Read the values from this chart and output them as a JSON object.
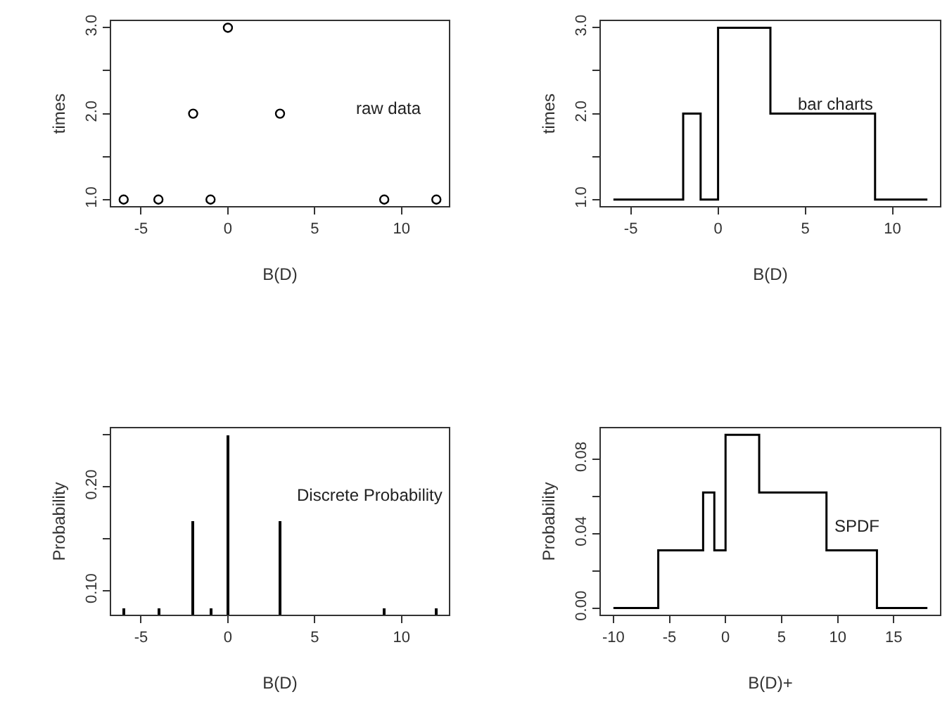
{
  "chart_data": [
    {
      "type": "scatter",
      "xlabel": "B(D)",
      "ylabel": "times",
      "annotations": [
        "raw data"
      ],
      "marker": "circle",
      "x": [
        -6,
        -4,
        -2,
        -1,
        0,
        3,
        9,
        12
      ],
      "series": [
        {
          "color": "#000000",
          "values": [
            1,
            1,
            2,
            1,
            3,
            2,
            1,
            1
          ]
        }
      ],
      "xlim": [
        -6.72,
        12.72
      ],
      "ylim": [
        0.92,
        3.08
      ],
      "xticks": [
        -5,
        0,
        5,
        10
      ],
      "yticks": [
        {
          "value": 1,
          "label": "1.0"
        },
        {
          "value": 1.5,
          "label": null
        },
        {
          "value": 2,
          "label": "2.0"
        },
        {
          "value": 2.5,
          "label": null
        },
        {
          "value": 3,
          "label": "3.0"
        }
      ]
    },
    {
      "type": "step",
      "xlabel": "B(D)",
      "ylabel": "times",
      "annotations": [
        "bar charts"
      ],
      "x": [
        -6,
        -2,
        -1,
        0,
        3,
        9,
        12
      ],
      "series": [
        {
          "color": "#000000",
          "values": [
            1,
            2,
            1,
            3,
            2,
            1,
            1
          ]
        }
      ],
      "xlim": [
        -6.72,
        12.72
      ],
      "ylim": [
        0.92,
        3.08
      ],
      "xticks": [
        -5,
        0,
        5,
        10
      ],
      "yticks": [
        {
          "value": 1,
          "label": "1.0"
        },
        {
          "value": 1.5,
          "label": null
        },
        {
          "value": 2,
          "label": "2.0"
        },
        {
          "value": 2.5,
          "label": null
        },
        {
          "value": 3,
          "label": "3.0"
        }
      ]
    },
    {
      "type": "bar",
      "xlabel": "B(D)",
      "ylabel": "Probability",
      "annotations": [
        "Discrete Probability"
      ],
      "x": [
        -6,
        -4,
        -2,
        -1,
        0,
        3,
        9,
        12
      ],
      "series": [
        {
          "color": "#000000",
          "values": [
            0.083,
            0.083,
            0.167,
            0.083,
            0.25,
            0.167,
            0.083,
            0.083
          ]
        }
      ],
      "xlim": [
        -6.72,
        12.72
      ],
      "ylim": [
        0.0767,
        0.2567
      ],
      "xticks": [
        -5,
        0,
        5,
        10
      ],
      "yticks": [
        {
          "value": 0.1,
          "label": "0.10"
        },
        {
          "value": 0.15,
          "label": null
        },
        {
          "value": 0.2,
          "label": "0.20"
        },
        {
          "value": 0.25,
          "label": null
        }
      ]
    },
    {
      "type": "step",
      "xlabel": "B(D)+",
      "ylabel": "Probability",
      "annotations": [
        "SPDF"
      ],
      "x": [
        -10,
        -6,
        -2,
        -1,
        0,
        3,
        9,
        13.5,
        18
      ],
      "series": [
        {
          "color": "#000000",
          "values": [
            0,
            0.031,
            0.062,
            0.031,
            0.093,
            0.062,
            0.031,
            0,
            0
          ]
        }
      ],
      "xlim": [
        -11.12,
        19.12
      ],
      "ylim": [
        -0.0037,
        0.0967
      ],
      "xticks": [
        -10,
        -5,
        0,
        5,
        10,
        15
      ],
      "yticks": [
        {
          "value": 0,
          "label": "0.00"
        },
        {
          "value": 0.02,
          "label": null
        },
        {
          "value": 0.04,
          "label": "0.04"
        },
        {
          "value": 0.06,
          "label": null
        },
        {
          "value": 0.08,
          "label": "0.08"
        }
      ]
    }
  ]
}
